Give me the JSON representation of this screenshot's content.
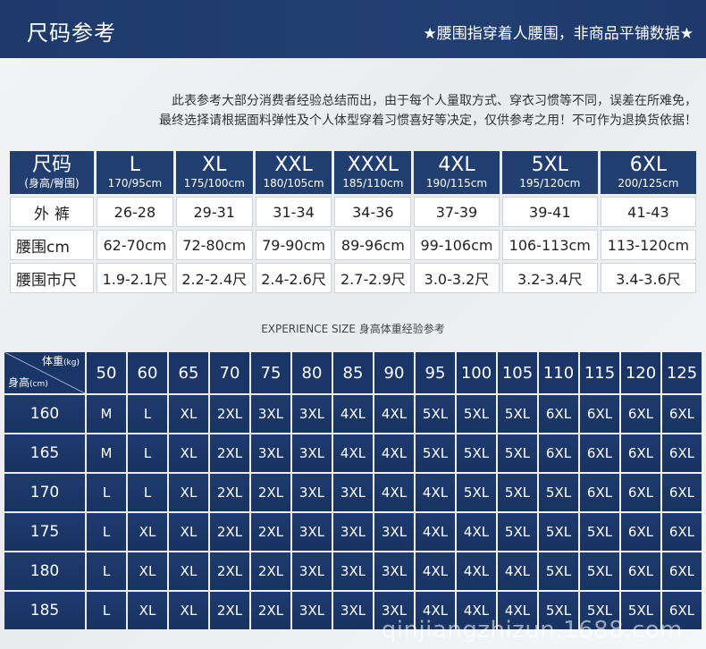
{
  "banner": {
    "title": "尺码参考",
    "subtitle": "★腰围指穿着人腰围，非商品平铺数据★"
  },
  "note": {
    "line1": "此表参考大部分消费者经验总结而出，由于每个人量取方式、穿衣习惯等不同，误差在所难免，",
    "line2": "最终选择请根据面料弹性及个人体型穿着习惯喜好等决定，仅供参考之用！不可作为退换货依据！"
  },
  "size_table": {
    "corner_big": "尺码",
    "corner_small": "(身高/臀围)",
    "sizes": [
      {
        "name": "L",
        "spec": "170/95cm"
      },
      {
        "name": "XL",
        "spec": "175/100cm"
      },
      {
        "name": "XXL",
        "spec": "180/105cm"
      },
      {
        "name": "XXXL",
        "spec": "185/110cm"
      },
      {
        "name": "4XL",
        "spec": "190/115cm"
      },
      {
        "name": "5XL",
        "spec": "195/120cm"
      },
      {
        "name": "6XL",
        "spec": "200/125cm"
      }
    ],
    "rows": [
      {
        "label": "外裤",
        "values": [
          "26-28",
          "29-31",
          "31-34",
          "34-36",
          "37-39",
          "39-41",
          "41-43"
        ]
      },
      {
        "label": "腰围cm",
        "values": [
          "62-70cm",
          "72-80cm",
          "79-90cm",
          "89-96cm",
          "99-106cm",
          "106-113cm",
          "113-120cm"
        ]
      },
      {
        "label": "腰围市尺",
        "values": [
          "1.9-2.1尺",
          "2.2-2.4尺",
          "2.4-2.6尺",
          "2.7-2.9尺",
          "3.0-3.2尺",
          "3.2-3.4尺",
          "3.4-3.6尺"
        ]
      }
    ]
  },
  "experience": {
    "caption": "EXPERIENCE SIZE 身高体重经验参考",
    "corner_weight": "体重",
    "corner_weight_unit": "(kg)",
    "corner_height": "身高",
    "corner_height_unit": "(cm)",
    "weights": [
      "50",
      "60",
      "65",
      "70",
      "75",
      "80",
      "85",
      "90",
      "95",
      "100",
      "105",
      "110",
      "115",
      "120",
      "125"
    ],
    "rows": [
      {
        "height": "160",
        "values": [
          "M",
          "L",
          "XL",
          "2XL",
          "3XL",
          "3XL",
          "4XL",
          "4XL",
          "5XL",
          "5XL",
          "5XL",
          "6XL",
          "6XL",
          "6XL",
          "6XL"
        ]
      },
      {
        "height": "165",
        "values": [
          "M",
          "L",
          "XL",
          "2XL",
          "3XL",
          "3XL",
          "4XL",
          "4XL",
          "5XL",
          "5XL",
          "5XL",
          "6XL",
          "6XL",
          "6XL",
          "6XL"
        ]
      },
      {
        "height": "170",
        "values": [
          "L",
          "L",
          "XL",
          "2XL",
          "2XL",
          "3XL",
          "3XL",
          "4XL",
          "4XL",
          "5XL",
          "5XL",
          "5XL",
          "6XL",
          "6XL",
          "6XL"
        ]
      },
      {
        "height": "175",
        "values": [
          "L",
          "XL",
          "XL",
          "2XL",
          "2XL",
          "3XL",
          "3XL",
          "3XL",
          "4XL",
          "4XL",
          "5XL",
          "5XL",
          "5XL",
          "6XL",
          "6XL"
        ]
      },
      {
        "height": "180",
        "values": [
          "L",
          "XL",
          "XL",
          "2XL",
          "2XL",
          "3XL",
          "3XL",
          "3XL",
          "4XL",
          "4XL",
          "4XL",
          "5XL",
          "5XL",
          "6XL",
          "6XL"
        ]
      },
      {
        "height": "185",
        "values": [
          "L",
          "XL",
          "XL",
          "2XL",
          "2XL",
          "3XL",
          "3XL",
          "3XL",
          "4XL",
          "4XL",
          "4XL",
          "5XL",
          "5XL",
          "5XL",
          "6XL"
        ]
      }
    ]
  },
  "watermark": "qinjiangzhizun.1688.com",
  "colors": {
    "navy": "#213e70",
    "background": "#f0f1f3"
  }
}
